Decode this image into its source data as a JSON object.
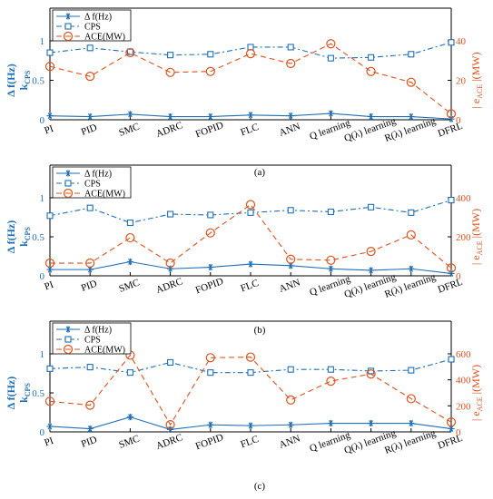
{
  "colors": {
    "delta_f": "#1f6fb5",
    "cps": "#1f6fb5",
    "ace": "#d9531e",
    "axis": "#000000"
  },
  "chart_data": [
    {
      "type": "line",
      "caption": "(a)",
      "categories": [
        "PI",
        "PID",
        "SMC",
        "ADRC",
        "FOPID",
        "FLC",
        "ANN",
        "Q learning",
        "Q(λ) learning",
        "R(λ) learning",
        "DFRL"
      ],
      "ylabel_left": [
        "Δ f(Hz)",
        "k",
        "CPS"
      ],
      "ylabel_right": [
        "| e",
        "ACE",
        " |(MW)"
      ],
      "ylim_left": [
        0,
        1
      ],
      "yticks_left": [
        0,
        0.5,
        1
      ],
      "ylim_right": [
        0,
        40
      ],
      "yticks_right": [
        0,
        20,
        40
      ],
      "legend": {
        "position": "top-left",
        "entries": [
          "Δ f(Hz)",
          "CPS",
          "ACE(MW)"
        ]
      },
      "series": [
        {
          "name": "Δ f(Hz)",
          "axis": "left",
          "marker": "star",
          "style": "solid",
          "values": [
            0.05,
            0.04,
            0.07,
            0.04,
            0.04,
            0.06,
            0.05,
            0.08,
            0.04,
            0.04,
            0.01
          ]
        },
        {
          "name": "CPS",
          "axis": "left",
          "marker": "square",
          "style": "dashdot",
          "values": [
            0.85,
            0.91,
            0.86,
            0.82,
            0.83,
            0.92,
            0.92,
            0.78,
            0.79,
            0.83,
            0.98
          ]
        },
        {
          "name": "ACE(MW)",
          "axis": "right",
          "marker": "circle",
          "style": "dashed",
          "values": [
            27,
            22,
            34,
            24,
            24.5,
            33.5,
            28.5,
            38.5,
            24.5,
            19,
            3
          ]
        }
      ]
    },
    {
      "type": "line",
      "caption": "(b)",
      "categories": [
        "PI",
        "PID",
        "SMC",
        "ADRC",
        "FOPID",
        "FLC",
        "ANN",
        "Q learning",
        "Q(λ) learning",
        "R(λ) learning",
        "DFRL"
      ],
      "ylabel_left": [
        "Δ f(Hz)",
        "k",
        "CPS"
      ],
      "ylabel_right": [
        "| e",
        "ACE",
        " |(MW)"
      ],
      "ylim_left": [
        0,
        1
      ],
      "yticks_left": [
        0,
        0.5,
        1
      ],
      "ylim_right": [
        0,
        400
      ],
      "yticks_right": [
        0,
        200,
        400
      ],
      "legend": {
        "position": "top-left",
        "entries": [
          "Δ f(Hz)",
          "CPS",
          "ACE(MW)"
        ]
      },
      "series": [
        {
          "name": "Δ f(Hz)",
          "axis": "left",
          "marker": "star",
          "style": "solid",
          "values": [
            0.08,
            0.08,
            0.18,
            0.09,
            0.11,
            0.15,
            0.13,
            0.09,
            0.07,
            0.09,
            0.03
          ]
        },
        {
          "name": "CPS",
          "axis": "left",
          "marker": "square",
          "style": "dashdot",
          "values": [
            0.77,
            0.87,
            0.68,
            0.79,
            0.78,
            0.81,
            0.84,
            0.82,
            0.88,
            0.81,
            0.97
          ]
        },
        {
          "name": "ACE(MW)",
          "axis": "right",
          "marker": "circle",
          "style": "dashed",
          "values": [
            65,
            65,
            195,
            65,
            220,
            365,
            85,
            80,
            125,
            210,
            40
          ]
        }
      ]
    },
    {
      "type": "line",
      "caption": "(c)",
      "categories": [
        "PI",
        "PID",
        "SMC",
        "ADRC",
        "FOPID",
        "FLC",
        "ANN",
        "Q learning",
        "Q(λ) learning",
        "R(λ) learning",
        "DFRL"
      ],
      "ylabel_left": [
        "Δ f(Hz)",
        "k",
        "CPS"
      ],
      "ylabel_right": [
        "| e",
        "ACE",
        " |(MW)"
      ],
      "ylim_left": [
        0,
        1
      ],
      "yticks_left": [
        0,
        0.5,
        1
      ],
      "ylim_right": [
        0,
        600
      ],
      "yticks_right": [
        0,
        200,
        400,
        600
      ],
      "legend": {
        "position": "top-left",
        "entries": [
          "Δ f(Hz)",
          "CPS",
          "ACE(MW)"
        ]
      },
      "series": [
        {
          "name": "Δ f(Hz)",
          "axis": "left",
          "marker": "star",
          "style": "solid",
          "values": [
            0.07,
            0.04,
            0.19,
            0.03,
            0.09,
            0.08,
            0.09,
            0.11,
            0.11,
            0.11,
            0.04
          ]
        },
        {
          "name": "CPS",
          "axis": "left",
          "marker": "square",
          "style": "dashdot",
          "values": [
            0.81,
            0.83,
            0.76,
            0.89,
            0.76,
            0.76,
            0.8,
            0.8,
            0.78,
            0.79,
            0.93
          ]
        },
        {
          "name": "ACE(MW)",
          "axis": "right",
          "marker": "circle",
          "style": "dashed",
          "values": [
            235,
            205,
            590,
            55,
            570,
            575,
            245,
            390,
            445,
            255,
            75
          ]
        }
      ]
    }
  ]
}
